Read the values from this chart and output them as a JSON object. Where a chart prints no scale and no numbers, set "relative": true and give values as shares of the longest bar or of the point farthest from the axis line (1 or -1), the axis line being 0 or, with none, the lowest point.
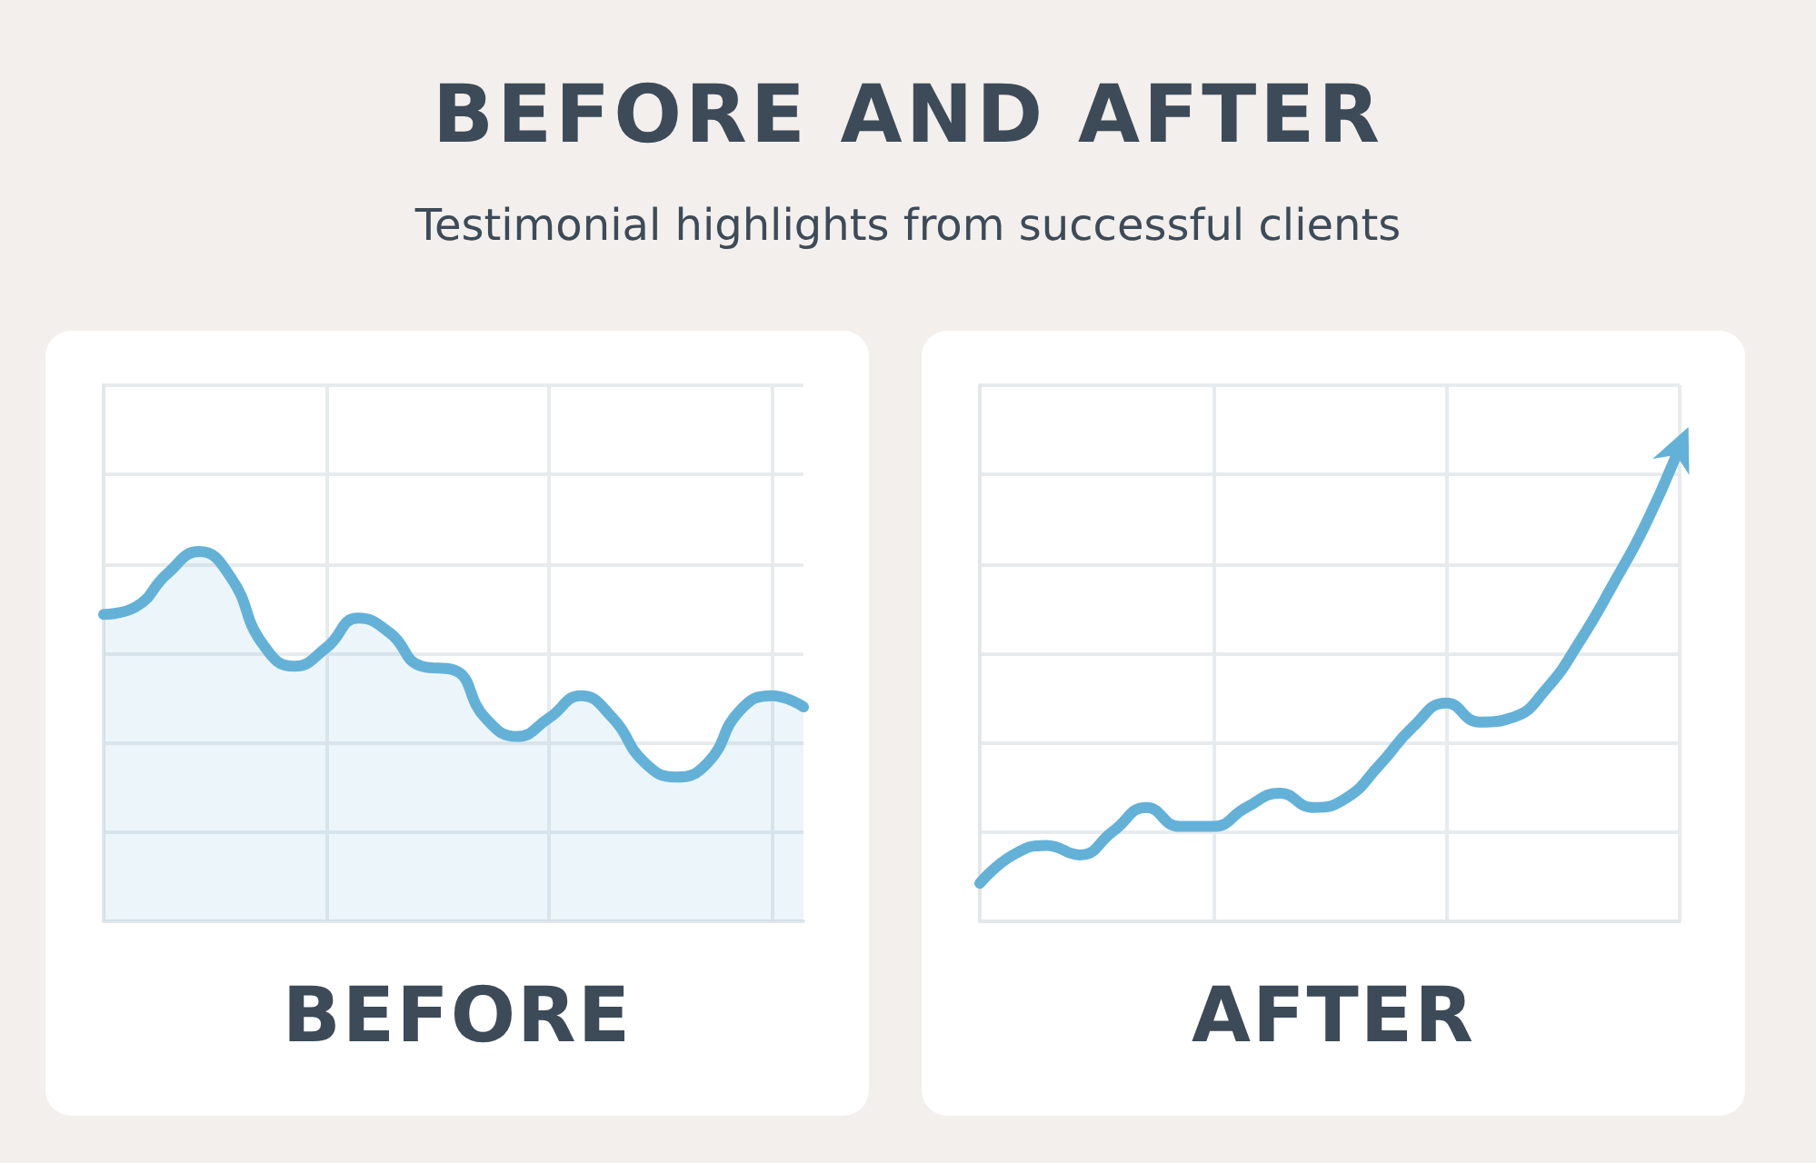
{
  "chart_data": [
    {
      "type": "area",
      "title": "BEFORE AND AFTER",
      "subtitle": "Testimonial highlights from successful clients",
      "xlabel": "BEFORE",
      "relative": true,
      "grid": true,
      "color": "#64b1d8",
      "categories": [
        null,
        null,
        null,
        null,
        null,
        null,
        null,
        null,
        null,
        null,
        null,
        null,
        null,
        null,
        null,
        null,
        null,
        null,
        null,
        null,
        null,
        null,
        null
      ],
      "values": [
        0.83,
        0.85,
        0.94,
        1,
        0.93,
        0.75,
        0.69,
        0.74,
        0.82,
        0.78,
        0.69,
        0.68,
        0.55,
        0.5,
        0.55,
        0.61,
        0.55,
        0.43,
        0.39,
        0.43,
        0.57,
        0.61,
        0.58
      ]
    },
    {
      "type": "line",
      "xlabel": "AFTER",
      "relative": true,
      "grid": true,
      "color": "#64b1d8",
      "categories": [
        null,
        null,
        null,
        null,
        null,
        null,
        null,
        null,
        null,
        null,
        null,
        null,
        null,
        null,
        null,
        null,
        null,
        null,
        null,
        null,
        null,
        null
      ],
      "values": [
        0.08,
        0.14,
        0.16,
        0.14,
        0.19,
        0.24,
        0.2,
        0.2,
        0.24,
        0.27,
        0.24,
        0.26,
        0.33,
        0.41,
        0.46,
        0.42,
        0.43,
        0.49,
        0.59,
        0.71,
        0.84,
        1
      ]
    }
  ]
}
